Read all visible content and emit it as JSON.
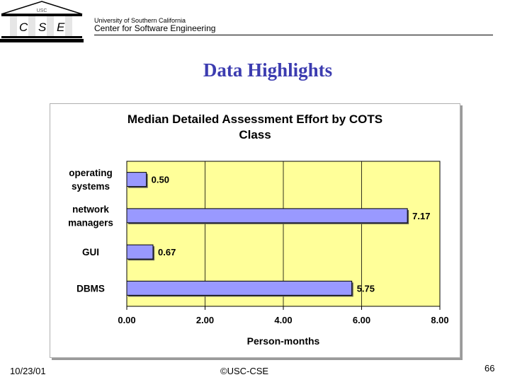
{
  "header": {
    "logo_letters": [
      "C",
      "S",
      "E"
    ],
    "university": "University of Southern California",
    "center": "Center for Software  Engineering"
  },
  "slide": {
    "title": "Data Highlights"
  },
  "footer": {
    "date": "10/23/01",
    "copyright": "©USC-CSE",
    "page": "66"
  },
  "colors": {
    "title": "#3c3cb0",
    "bar_fill": "#9999ff",
    "plot_area": "#ffff99",
    "gridline": "#000000"
  },
  "chart_data": {
    "type": "bar",
    "orientation": "horizontal",
    "title_lines": [
      "Median Detailed Assessment Effort by COTS",
      "Class"
    ],
    "categories": [
      {
        "lines": [
          "operating",
          "systems"
        ]
      },
      {
        "lines": [
          "network",
          "managers"
        ]
      },
      {
        "lines": [
          "GUI"
        ]
      },
      {
        "lines": [
          "DBMS"
        ]
      }
    ],
    "values": [
      0.5,
      7.17,
      0.67,
      5.75
    ],
    "data_labels": [
      "0.50",
      "7.17",
      "0.67",
      "5.75"
    ],
    "xlabel": "Person-months",
    "xlim": [
      0,
      8
    ],
    "xticks": [
      "0.00",
      "2.00",
      "4.00",
      "6.00",
      "8.00"
    ],
    "xtick_values": [
      0,
      2,
      4,
      6,
      8
    ],
    "legend": "none"
  }
}
